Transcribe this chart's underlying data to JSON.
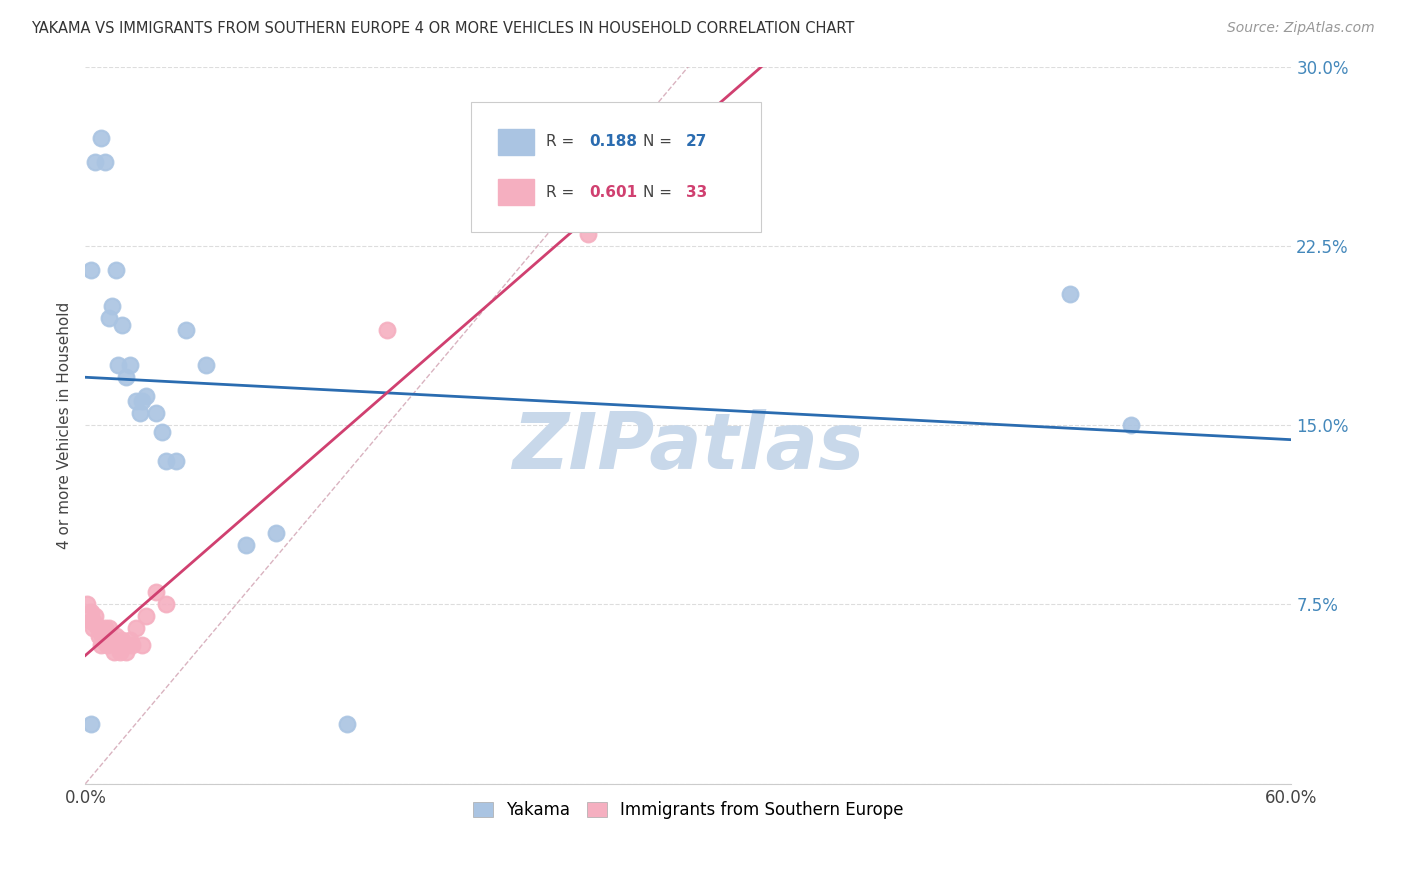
{
  "title": "YAKAMA VS IMMIGRANTS FROM SOUTHERN EUROPE 4 OR MORE VEHICLES IN HOUSEHOLD CORRELATION CHART",
  "source": "Source: ZipAtlas.com",
  "ylabel": "4 or more Vehicles in Household",
  "xmin": 0.0,
  "xmax": 0.6,
  "ymin": 0.0,
  "ymax": 0.3,
  "yakama_R": 0.188,
  "yakama_N": 27,
  "southern_europe_R": 0.601,
  "southern_europe_N": 33,
  "yakama_color": "#aac4e2",
  "southern_europe_color": "#f5afc0",
  "yakama_line_color": "#2b6cb0",
  "southern_europe_line_color": "#d04070",
  "reference_line_color": "#d0a0b0",
  "background_color": "#ffffff",
  "grid_color": "#dddddd",
  "yakama_x": [
    0.003,
    0.005,
    0.008,
    0.01,
    0.012,
    0.013,
    0.015,
    0.016,
    0.018,
    0.02,
    0.022,
    0.025,
    0.027,
    0.03,
    0.035,
    0.038,
    0.04,
    0.045,
    0.05,
    0.06,
    0.08,
    0.095,
    0.13,
    0.49,
    0.52,
    0.003,
    0.028
  ],
  "yakama_y": [
    0.215,
    0.26,
    0.27,
    0.26,
    0.195,
    0.2,
    0.215,
    0.175,
    0.192,
    0.17,
    0.175,
    0.16,
    0.155,
    0.162,
    0.155,
    0.147,
    0.135,
    0.135,
    0.19,
    0.175,
    0.1,
    0.105,
    0.025,
    0.205,
    0.15,
    0.025,
    0.16
  ],
  "southern_europe_x": [
    0.001,
    0.003,
    0.003,
    0.004,
    0.004,
    0.005,
    0.006,
    0.007,
    0.007,
    0.008,
    0.008,
    0.009,
    0.01,
    0.01,
    0.011,
    0.012,
    0.013,
    0.014,
    0.015,
    0.016,
    0.017,
    0.018,
    0.019,
    0.02,
    0.022,
    0.023,
    0.025,
    0.028,
    0.03,
    0.035,
    0.04,
    0.15,
    0.25
  ],
  "southern_europe_y": [
    0.075,
    0.072,
    0.068,
    0.068,
    0.065,
    0.07,
    0.066,
    0.065,
    0.062,
    0.063,
    0.058,
    0.06,
    0.065,
    0.06,
    0.058,
    0.065,
    0.06,
    0.055,
    0.062,
    0.058,
    0.055,
    0.06,
    0.058,
    0.055,
    0.06,
    0.058,
    0.065,
    0.058,
    0.07,
    0.08,
    0.075,
    0.19,
    0.23
  ],
  "watermark_text": "ZIPatlas",
  "watermark_color": "#c8d8ea"
}
